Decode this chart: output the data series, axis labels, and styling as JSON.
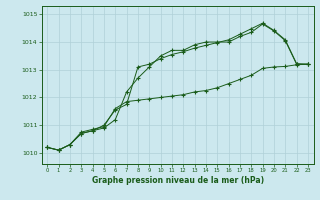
{
  "title": "",
  "xlabel": "Graphe pression niveau de la mer (hPa)",
  "ylabel": "",
  "background_color": "#cce8ee",
  "grid_color": "#b0d0d8",
  "line_color": "#1a5c1a",
  "xlim": [
    -0.5,
    23.5
  ],
  "ylim": [
    1009.6,
    1015.3
  ],
  "yticks": [
    1010,
    1011,
    1012,
    1013,
    1014,
    1015
  ],
  "xticks": [
    0,
    1,
    2,
    3,
    4,
    5,
    6,
    7,
    8,
    9,
    10,
    11,
    12,
    13,
    14,
    15,
    16,
    17,
    18,
    19,
    20,
    21,
    22,
    23
  ],
  "line1_x": [
    0,
    1,
    2,
    3,
    4,
    5,
    6,
    7,
    8,
    9,
    10,
    11,
    12,
    13,
    14,
    15,
    16,
    17,
    18,
    19,
    20,
    21,
    22,
    23
  ],
  "line1_y": [
    1010.2,
    1010.1,
    1010.3,
    1010.7,
    1010.8,
    1010.9,
    1011.2,
    1012.2,
    1012.7,
    1013.1,
    1013.5,
    1013.7,
    1013.7,
    1013.9,
    1014.0,
    1014.0,
    1014.0,
    1014.2,
    1014.35,
    1014.65,
    1014.4,
    1014.05,
    1013.2,
    1013.2
  ],
  "line2_x": [
    0,
    1,
    2,
    3,
    4,
    5,
    6,
    7,
    8,
    9,
    10,
    11,
    12,
    13,
    14,
    15,
    16,
    17,
    18,
    19,
    20,
    21,
    22,
    23
  ],
  "line2_y": [
    1010.2,
    1010.1,
    1010.3,
    1010.7,
    1010.8,
    1011.0,
    1011.55,
    1011.75,
    1013.1,
    1013.2,
    1013.4,
    1013.55,
    1013.65,
    1013.78,
    1013.88,
    1013.98,
    1014.08,
    1014.28,
    1014.48,
    1014.68,
    1014.42,
    1014.08,
    1013.22,
    1013.2
  ],
  "line3_x": [
    0,
    1,
    2,
    3,
    4,
    5,
    6,
    7,
    8,
    9,
    10,
    11,
    12,
    13,
    14,
    15,
    16,
    17,
    18,
    19,
    20,
    21,
    22,
    23
  ],
  "line3_y": [
    1010.2,
    1010.1,
    1010.3,
    1010.75,
    1010.85,
    1010.95,
    1011.6,
    1011.85,
    1011.9,
    1011.95,
    1012.0,
    1012.05,
    1012.1,
    1012.2,
    1012.25,
    1012.35,
    1012.5,
    1012.65,
    1012.8,
    1013.05,
    1013.1,
    1013.12,
    1013.18,
    1013.2
  ]
}
